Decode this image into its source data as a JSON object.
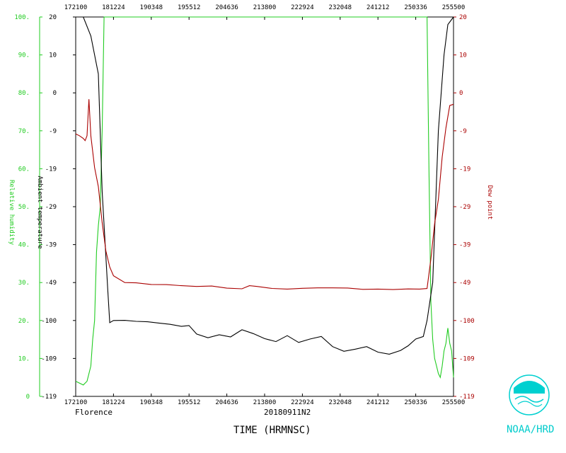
{
  "chart_data": {
    "type": "line",
    "storm": "Florence",
    "flight_id": "20180911N2",
    "xlabel": "TIME (HRMNSC)",
    "credit": "NOAA/HRD",
    "x_ticks": [
      "172100",
      "181224",
      "190348",
      "195512",
      "204636",
      "213800",
      "222924",
      "232048",
      "241212",
      "250336",
      "255500"
    ],
    "y_left_rh": {
      "label": "Relative humidity",
      "color": "#22cc22",
      "ticks": [
        "0",
        "10.",
        "20.",
        "30.",
        "40.",
        "50.",
        "60.",
        "70.",
        "80.",
        "90.",
        "100."
      ]
    },
    "y_left_temp": {
      "label": "Ambient temperature",
      "color": "#000000",
      "ticks": [
        "-119",
        "-109",
        "-100",
        "-49",
        "-39",
        "-29",
        "-19",
        "-9",
        "0",
        "10",
        "20"
      ]
    },
    "y_right_dew": {
      "label": "Dew point",
      "color": "#aa0000",
      "ticks": [
        "-119",
        "-109",
        "-100",
        "-49",
        "-39",
        "-29",
        "-19",
        "-9",
        "0",
        "10",
        "20"
      ]
    },
    "series": [
      {
        "name": "Relative humidity",
        "color": "#22cc22",
        "points": [
          [
            0,
            4
          ],
          [
            0.02,
            3
          ],
          [
            0.03,
            4
          ],
          [
            0.04,
            8
          ],
          [
            0.045,
            15
          ],
          [
            0.05,
            20
          ],
          [
            0.055,
            38
          ],
          [
            0.06,
            45
          ],
          [
            0.065,
            50
          ],
          [
            0.07,
            70
          ],
          [
            0.075,
            100
          ],
          [
            0.93,
            100
          ],
          [
            0.935,
            60
          ],
          [
            0.94,
            25
          ],
          [
            0.945,
            15
          ],
          [
            0.95,
            10
          ],
          [
            0.955,
            8
          ],
          [
            0.96,
            6
          ],
          [
            0.965,
            5
          ],
          [
            0.97,
            8
          ],
          [
            0.975,
            12
          ],
          [
            0.98,
            14
          ],
          [
            0.985,
            18
          ],
          [
            0.99,
            14
          ],
          [
            0.995,
            12
          ],
          [
            1,
            5
          ]
        ]
      },
      {
        "name": "Ambient temperature",
        "color": "#000000",
        "points": [
          [
            0.02,
            20
          ],
          [
            0.04,
            15
          ],
          [
            0.06,
            5
          ],
          [
            0.07,
            -25
          ],
          [
            0.085,
            -60
          ],
          [
            0.09,
            -100.5
          ],
          [
            0.1,
            -100
          ],
          [
            0.13,
            -99.8
          ],
          [
            0.16,
            -100.2
          ],
          [
            0.19,
            -100.3
          ],
          [
            0.22,
            -100.6
          ],
          [
            0.25,
            -100.9
          ],
          [
            0.28,
            -101.4
          ],
          [
            0.3,
            -101.2
          ],
          [
            0.32,
            -103.2
          ],
          [
            0.35,
            -104.1
          ],
          [
            0.38,
            -103.4
          ],
          [
            0.41,
            -103.9
          ],
          [
            0.44,
            -102.2
          ],
          [
            0.47,
            -103.1
          ],
          [
            0.5,
            -104.3
          ],
          [
            0.53,
            -105.0
          ],
          [
            0.56,
            -103.6
          ],
          [
            0.59,
            -105.2
          ],
          [
            0.62,
            -104.4
          ],
          [
            0.65,
            -103.8
          ],
          [
            0.68,
            -106.2
          ],
          [
            0.71,
            -107.3
          ],
          [
            0.74,
            -106.8
          ],
          [
            0.77,
            -106.2
          ],
          [
            0.8,
            -107.5
          ],
          [
            0.83,
            -108.0
          ],
          [
            0.86,
            -107.1
          ],
          [
            0.88,
            -106.0
          ],
          [
            0.9,
            -104.4
          ],
          [
            0.92,
            -103.8
          ],
          [
            0.93,
            -100
          ],
          [
            0.945,
            -49
          ],
          [
            0.96,
            -9
          ],
          [
            0.975,
            10
          ],
          [
            0.985,
            18
          ],
          [
            1,
            20
          ]
        ]
      },
      {
        "name": "Dew point",
        "color": "#aa0000",
        "points": [
          [
            0,
            -9.8
          ],
          [
            0.01,
            -10.3
          ],
          [
            0.02,
            -11.0
          ],
          [
            0.025,
            -11.6
          ],
          [
            0.03,
            -10.3
          ],
          [
            0.035,
            -1.5
          ],
          [
            0.04,
            -10.3
          ],
          [
            0.05,
            -18.7
          ],
          [
            0.06,
            -23.7
          ],
          [
            0.07,
            -33.2
          ],
          [
            0.08,
            -40.7
          ],
          [
            0.09,
            -44.9
          ],
          [
            0.1,
            -47.2
          ],
          [
            0.13,
            -49
          ],
          [
            0.16,
            -49.4
          ],
          [
            0.2,
            -51.6
          ],
          [
            0.24,
            -51.8
          ],
          [
            0.28,
            -53.2
          ],
          [
            0.32,
            -54.2
          ],
          [
            0.36,
            -53.7
          ],
          [
            0.4,
            -56.5
          ],
          [
            0.44,
            -57.4
          ],
          [
            0.46,
            -53.2
          ],
          [
            0.48,
            -54.2
          ],
          [
            0.52,
            -56.9
          ],
          [
            0.56,
            -57.8
          ],
          [
            0.6,
            -56.7
          ],
          [
            0.64,
            -56.1
          ],
          [
            0.68,
            -56.1
          ],
          [
            0.72,
            -56.3
          ],
          [
            0.76,
            -58.1
          ],
          [
            0.8,
            -57.8
          ],
          [
            0.84,
            -58.4
          ],
          [
            0.88,
            -57.6
          ],
          [
            0.91,
            -57.8
          ],
          [
            0.93,
            -57.0
          ],
          [
            0.94,
            -42.8
          ],
          [
            0.95,
            -33.5
          ],
          [
            0.96,
            -27.1
          ],
          [
            0.97,
            -15.9
          ],
          [
            0.98,
            -8.3
          ],
          [
            0.99,
            -3.0
          ],
          [
            1,
            -2.7
          ]
        ]
      }
    ]
  }
}
